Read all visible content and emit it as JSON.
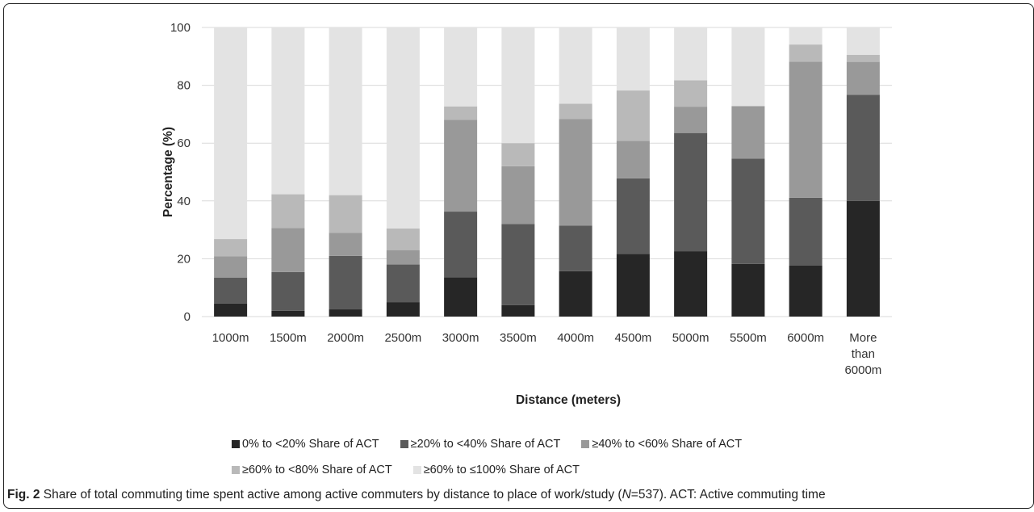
{
  "chart_data": {
    "type": "bar",
    "stacked": true,
    "categories": [
      "1000m",
      "1500m",
      "2000m",
      "2500m",
      "3000m",
      "3500m",
      "4000m",
      "4500m",
      "5000m",
      "5500m",
      "6000m",
      "More than 6000m"
    ],
    "series": [
      {
        "name": "0% to <20% Share of ACT",
        "color": "#262626",
        "values": [
          4.5,
          2,
          2.5,
          5,
          13.6,
          4,
          15.7,
          21.7,
          22.6,
          18.2,
          17.6,
          40
        ]
      },
      {
        "name": "≥20% to <40% Share of ACT",
        "color": "#5a5a5a",
        "values": [
          9,
          13.4,
          18.5,
          13,
          22.7,
          28,
          15.8,
          26.1,
          40.9,
          36.4,
          23.5,
          36.7
        ]
      },
      {
        "name": "≥40% to <60% Share of ACT",
        "color": "#999999",
        "values": [
          7.3,
          15.2,
          8,
          5,
          31.8,
          20,
          36.8,
          13,
          9.1,
          18.2,
          47.1,
          11.4
        ]
      },
      {
        "name": "≥60% to <80% Share of ACT",
        "color": "#b9b9b9",
        "values": [
          6,
          11.7,
          13,
          7.5,
          4.6,
          8,
          5.3,
          17.4,
          9.1,
          0,
          5.9,
          2.4
        ]
      },
      {
        "name": "≥60% to ≤100% Share of ACT",
        "color": "#e3e3e3",
        "values": [
          73.2,
          57.7,
          58,
          69.5,
          27.3,
          40,
          26.4,
          21.8,
          18.3,
          27.2,
          5.9,
          9.5
        ]
      }
    ],
    "y_ticks": [
      0,
      20,
      40,
      60,
      80,
      100
    ],
    "ylim": [
      0,
      100
    ],
    "xlabel": "Distance (meters)",
    "ylabel": "Percentage (%)",
    "grid": true,
    "legend_position": "bottom"
  },
  "caption": {
    "label": "Fig. 2",
    "text_before": "Share of total commuting time spent active among active commuters by distance to place of work/study (",
    "n_symbol": "N",
    "text_after": "=537). ACT: Active commuting time"
  }
}
